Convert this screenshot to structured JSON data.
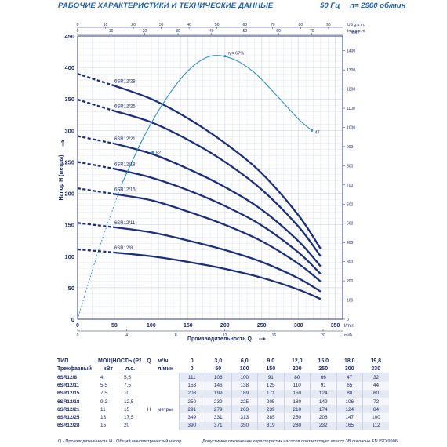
{
  "header": {
    "title": "РАБОЧИЕ ХАРАКТЕРИСТИКИ И ТЕХНИЧЕСКИЕ ДАННЫЕ",
    "frequency": "50 Гц",
    "speed": "n= 2900 об/мин"
  },
  "chart_data": {
    "type": "line",
    "ylabel": "Напор Н (метры)",
    "xlabel": "Производительность Q",
    "x_unit_lmin": "l/min",
    "x_unit_m3h": "m³/h",
    "top_unit_us": "US g.p.m.",
    "top_unit_imp": "Imp g.p.m.",
    "right_unit": "feet",
    "xlim": [
      0,
      360
    ],
    "ylim": [
      0,
      450
    ],
    "x_ticks_lmin": [
      "0",
      "50",
      "100",
      "150",
      "200",
      "250",
      "300",
      "350"
    ],
    "x_ticks_m3h": [
      "0",
      "4",
      "8",
      "12",
      "16",
      "20"
    ],
    "x_ticks_us": [
      "0",
      "10",
      "20",
      "30",
      "40",
      "50",
      "60",
      "70",
      "80",
      "90"
    ],
    "x_ticks_imp": [
      "0",
      "10",
      "20",
      "30",
      "40",
      "50",
      "60",
      "70"
    ],
    "y_ticks": [
      "0",
      "50",
      "100",
      "150",
      "200",
      "250",
      "300",
      "350",
      "400",
      "450"
    ],
    "y_ticks_feet": [
      "0",
      "100",
      "200",
      "300",
      "400",
      "500",
      "600",
      "700",
      "800",
      "900",
      "1000",
      "1100",
      "1200",
      "1300",
      "1400"
    ],
    "grid": true,
    "x_points": [
      0,
      50,
      100,
      150,
      200,
      250,
      300,
      330
    ],
    "series": [
      {
        "name": "6SR12/8",
        "values": [
          111,
          106,
          100,
          91,
          80,
          66,
          47,
          32
        ]
      },
      {
        "name": "6SR12/11",
        "values": [
          153,
          146,
          138,
          125,
          110,
          91,
          65,
          44
        ]
      },
      {
        "name": "6SR12/15",
        "values": [
          208,
          199,
          189,
          171,
          150,
          124,
          88,
          60
        ]
      },
      {
        "name": "6SR12/18",
        "values": [
          250,
          239,
          225,
          205,
          180,
          149,
          106,
          72
        ]
      },
      {
        "name": "6SR12/21",
        "values": [
          291,
          279,
          263,
          239,
          210,
          174,
          124,
          84
        ]
      },
      {
        "name": "6SR12/25",
        "values": [
          349,
          331,
          313,
          285,
          250,
          206,
          147,
          100
        ]
      },
      {
        "name": "6SR12/28",
        "values": [
          390,
          371,
          350,
          319,
          280,
          232,
          165,
          112
        ]
      }
    ],
    "efficiency": {
      "peak_label": "η = 67%",
      "start_label": "52",
      "end_label": "47",
      "x": [
        0,
        30,
        60,
        90,
        120,
        150,
        180,
        210,
        240,
        270,
        300,
        318
      ],
      "y": [
        0,
        115,
        215,
        290,
        350,
        395,
        418,
        414,
        392,
        356,
        318,
        300
      ]
    }
  },
  "table": {
    "header": {
      "type": "ТИП",
      "power": "МОЩНОСТЬ (P2)",
      "q_symbol": "Q",
      "unit_m3h": "м³/ч",
      "unit_lmin": "л/мин",
      "three_phase": "Трехфазный",
      "kw": "кВт",
      "hp": "л.с.",
      "h_symbol": "H",
      "h_unit": "метры"
    },
    "flows_m3h": [
      "0",
      "3,0",
      "6,0",
      "9,0",
      "12,0",
      "15,0",
      "18,0",
      "19,8"
    ],
    "flows_lmin": [
      "0",
      "50",
      "100",
      "150",
      "200",
      "250",
      "300",
      "330"
    ],
    "rows": [
      {
        "name": "6SR12/8",
        "kw": "4",
        "hp": "5,5",
        "h": [
          "111",
          "106",
          "100",
          "91",
          "80",
          "66",
          "47",
          "32"
        ]
      },
      {
        "name": "6SR12/11",
        "kw": "5,5",
        "hp": "7,5",
        "h": [
          "153",
          "146",
          "138",
          "125",
          "110",
          "91",
          "65",
          "44"
        ]
      },
      {
        "name": "6SR12/15",
        "kw": "7,5",
        "hp": "10",
        "h": [
          "208",
          "199",
          "189",
          "171",
          "150",
          "124",
          "88",
          "60"
        ]
      },
      {
        "name": "6SR12/18",
        "kw": "9,2",
        "hp": "12,5",
        "h": [
          "250",
          "239",
          "225",
          "205",
          "180",
          "149",
          "106",
          "72"
        ]
      },
      {
        "name": "6SR12/21",
        "kw": "11",
        "hp": "15",
        "h": [
          "291",
          "279",
          "263",
          "239",
          "210",
          "174",
          "124",
          "84"
        ]
      },
      {
        "name": "6SR12/25",
        "kw": "13",
        "hp": "17,5",
        "h": [
          "349",
          "331",
          "313",
          "285",
          "250",
          "206",
          "147",
          "100"
        ]
      },
      {
        "name": "6SR12/28",
        "kw": "15",
        "hp": "20",
        "h": [
          "390",
          "371",
          "350",
          "319",
          "280",
          "232",
          "165",
          "112"
        ]
      }
    ]
  },
  "footer": {
    "legend": "Q - Производительность    H - Общий манометрический напор",
    "note": "Допустимое отклонение характеристик насосов соответствует классу 3B согласно EN ISO 9906."
  },
  "colors": {
    "curve": "#1c2f7a",
    "efficiency": "#2a8fd0",
    "grid": "#cfd6e6",
    "header": "#1f5fae"
  }
}
